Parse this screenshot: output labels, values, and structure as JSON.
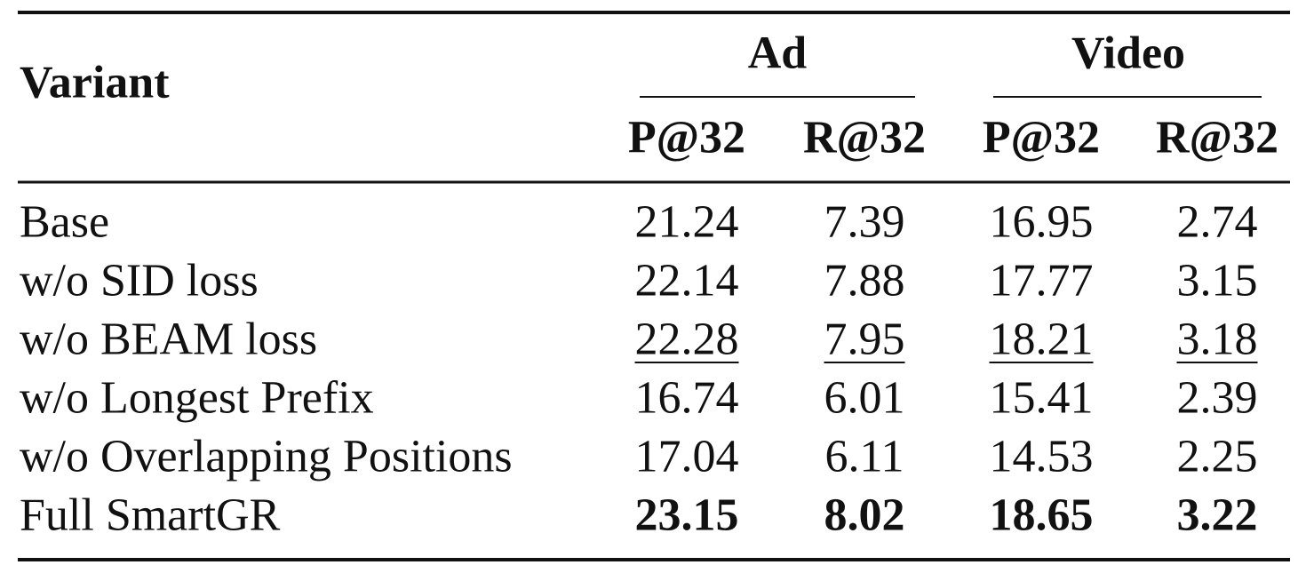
{
  "table": {
    "header": {
      "variant": "Variant",
      "groups": [
        "Ad",
        "Video"
      ],
      "columns": [
        "P@32",
        "R@32",
        "P@32",
        "R@32"
      ]
    },
    "rows": [
      {
        "label": "Base",
        "values": [
          "21.24",
          "7.39",
          "16.95",
          "2.74"
        ]
      },
      {
        "label": "w/o SID loss",
        "values": [
          "22.14",
          "7.88",
          "17.77",
          "3.15"
        ]
      },
      {
        "label": "w/o BEAM loss",
        "values": [
          "22.28",
          "7.95",
          "18.21",
          "3.18"
        ]
      },
      {
        "label": "w/o Longest Prefix",
        "values": [
          "16.74",
          "6.01",
          "15.41",
          "2.39"
        ]
      },
      {
        "label": "w/o Overlapping Positions",
        "values": [
          "17.04",
          "6.11",
          "14.53",
          "2.25"
        ]
      },
      {
        "label": "Full SmartGR",
        "values": [
          "23.15",
          "8.02",
          "18.65",
          "3.22"
        ]
      }
    ]
  }
}
